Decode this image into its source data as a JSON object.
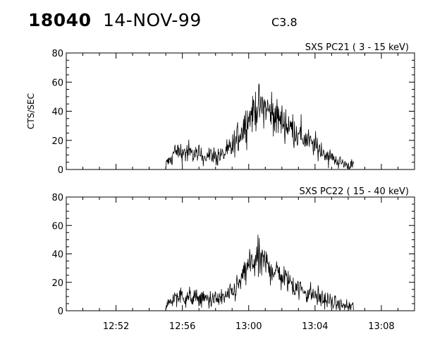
{
  "header": {
    "event_id": "18040",
    "date": "14-NOV-99",
    "flare_class": "C3.8"
  },
  "chart_data": [
    {
      "type": "line",
      "title": "SXS PC21  (  3 - 15 keV)",
      "xlabel": "",
      "ylabel": "CTS/SEC",
      "xlim": [
        "12:49",
        "13:10"
      ],
      "ylim": [
        0,
        80
      ],
      "yticks": [
        "0",
        "20",
        "40",
        "60",
        "80"
      ],
      "xticks": [],
      "grid": false,
      "series": [
        {
          "x": [
            "12:55:00",
            "12:55:30",
            "12:56:00",
            "12:56:30",
            "12:57:00",
            "12:57:30",
            "12:58:00",
            "12:58:30",
            "12:59:00",
            "12:59:30",
            "13:00:00",
            "13:00:30",
            "13:01:00",
            "13:01:30",
            "13:02:00",
            "13:02:30",
            "13:03:00",
            "13:03:30",
            "13:04:00",
            "13:04:30",
            "13:05:00",
            "13:05:30",
            "13:06:00",
            "13:06:20"
          ],
          "y": [
            0,
            12,
            12,
            11,
            10,
            10,
            9,
            10,
            15,
            25,
            36,
            43,
            42,
            38,
            33,
            29,
            24,
            20,
            16,
            12,
            8,
            5,
            3,
            3
          ]
        }
      ]
    },
    {
      "type": "line",
      "title": "SXS PC22  ( 15 - 40 keV)",
      "xlabel": "",
      "ylabel": "",
      "xlim": [
        "12:49",
        "13:10"
      ],
      "ylim": [
        0,
        80
      ],
      "yticks": [
        "0",
        "20",
        "40",
        "60",
        "80"
      ],
      "xticks": [
        "12:52",
        "12:56",
        "13:00",
        "13:04",
        "13:08"
      ],
      "grid": false,
      "series": [
        {
          "x": [
            "12:55:00",
            "12:55:30",
            "12:56:00",
            "12:56:30",
            "12:57:00",
            "12:57:30",
            "12:58:00",
            "12:58:30",
            "12:59:00",
            "12:59:30",
            "13:00:00",
            "13:00:30",
            "13:01:00",
            "13:01:30",
            "13:02:00",
            "13:02:30",
            "13:03:00",
            "13:03:30",
            "13:04:00",
            "13:04:30",
            "13:05:00",
            "13:05:30",
            "13:06:00",
            "13:06:20"
          ],
          "y": [
            0,
            10,
            10,
            9,
            9,
            8,
            8,
            9,
            12,
            20,
            32,
            36,
            33,
            29,
            24,
            20,
            16,
            13,
            11,
            8,
            6,
            4,
            3,
            3
          ]
        }
      ]
    }
  ]
}
